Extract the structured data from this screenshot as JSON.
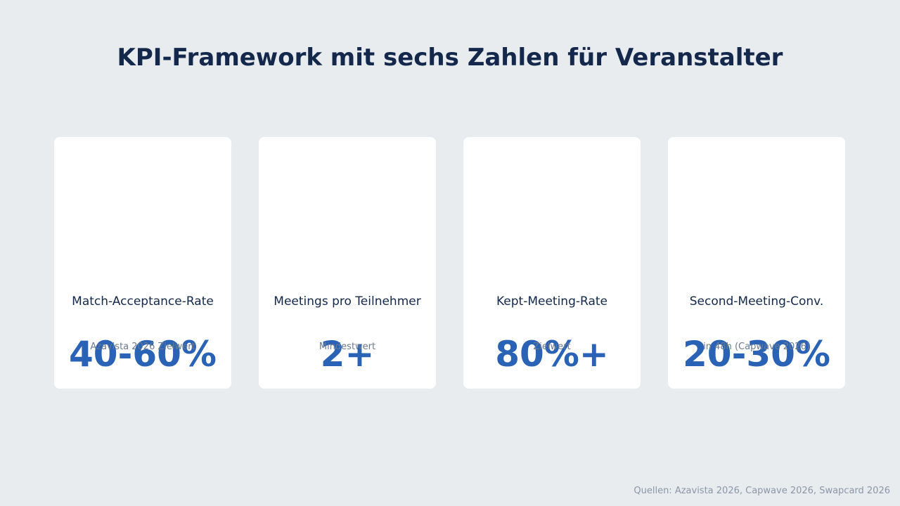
{
  "header": {
    "title": "KPI-Framework mit sechs Zahlen für Veranstalter"
  },
  "cards": [
    {
      "value": "40-60%",
      "label": "Match-Acceptance-Rate",
      "note": "Azavista 2026 Zielwert"
    },
    {
      "value": "2+",
      "label": "Meetings pro Teilnehmer",
      "note": "Mindestwert"
    },
    {
      "value": "80%+",
      "label": "Kept-Meeting-Rate",
      "note": "Zielwert"
    },
    {
      "value": "20-30%",
      "label": "Second-Meeting-Conv.",
      "note": "in 48h (Capwave 2026)"
    }
  ],
  "footer": {
    "sources": "Quellen: Azavista 2026, Capwave 2026, Swapcard 2026"
  }
}
